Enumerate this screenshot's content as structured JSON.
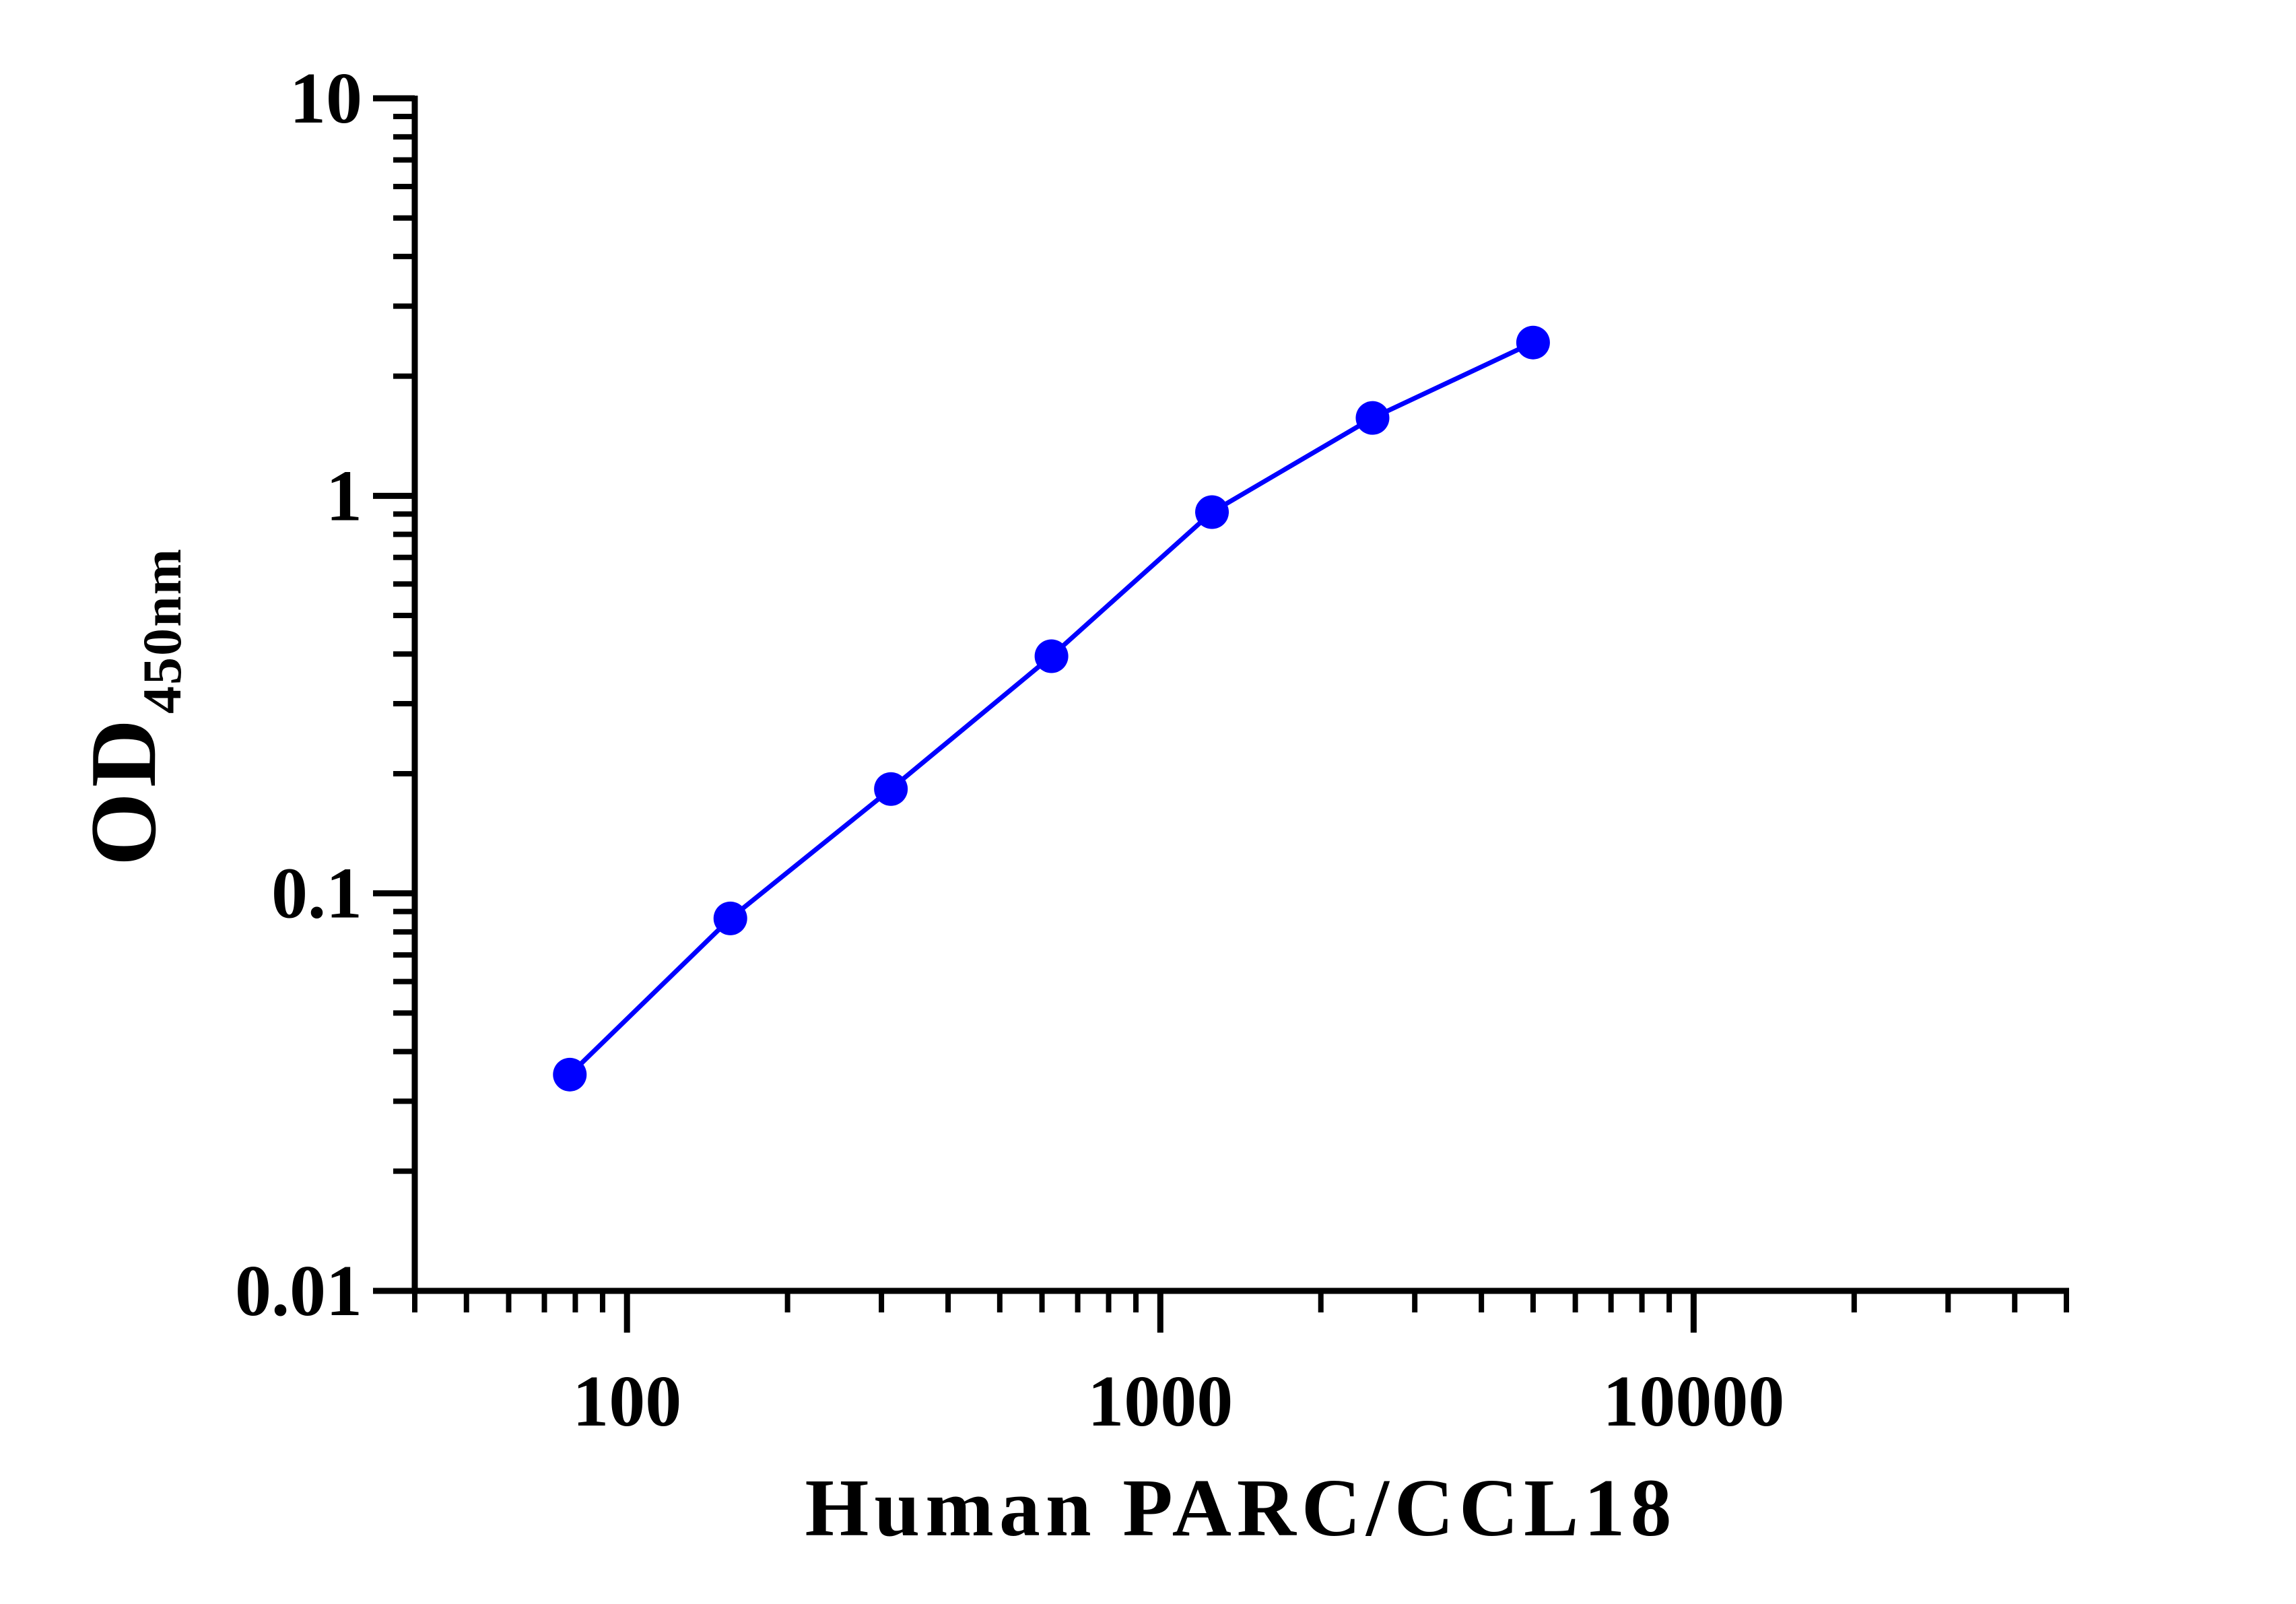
{
  "chart_data": {
    "type": "line",
    "x_label": "Human PARC/CCL18",
    "y_label": "OD",
    "y_label_sub": "450nm",
    "x_log": true,
    "y_log": true,
    "xlim": [
      40,
      50000
    ],
    "ylim": [
      0.01,
      10
    ],
    "xticks": [
      100,
      1000,
      10000
    ],
    "yticks": [
      0.01,
      0.1,
      1,
      10
    ],
    "xminorticks": [
      40,
      50,
      60,
      70,
      80,
      90,
      200,
      300,
      400,
      500,
      600,
      700,
      800,
      900,
      2000,
      3000,
      4000,
      5000,
      6000,
      7000,
      8000,
      9000,
      20000,
      30000,
      40000,
      50000
    ],
    "yminorticks": [
      0.02,
      0.03,
      0.04,
      0.05,
      0.06,
      0.07,
      0.08,
      0.09,
      0.2,
      0.3,
      0.4,
      0.5,
      0.6,
      0.7,
      0.8,
      0.9,
      2,
      3,
      4,
      5,
      6,
      7,
      8,
      9
    ],
    "series": [
      {
        "color": "#0000ff",
        "x": [
          78.125,
          156.25,
          312.5,
          625,
          1250,
          2500,
          5000
        ],
        "values": [
          0.035,
          0.0865,
          0.183,
          0.395,
          0.91,
          1.57,
          2.43
        ]
      }
    ]
  }
}
